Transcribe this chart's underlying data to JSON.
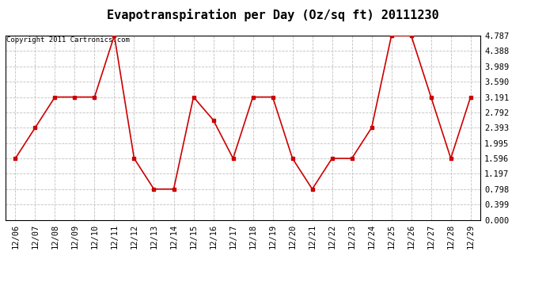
{
  "title": "Evapotranspiration per Day (Oz/sq ft) 20111230",
  "copyright": "Copyright 2011 Cartronics.com",
  "x_labels": [
    "12/06",
    "12/07",
    "12/08",
    "12/09",
    "12/10",
    "12/11",
    "12/12",
    "12/13",
    "12/14",
    "12/15",
    "12/16",
    "12/17",
    "12/18",
    "12/19",
    "12/20",
    "12/21",
    "12/22",
    "12/23",
    "12/24",
    "12/25",
    "12/26",
    "12/27",
    "12/28",
    "12/29"
  ],
  "y_values": [
    1.596,
    2.393,
    3.191,
    3.191,
    3.191,
    4.787,
    1.596,
    0.798,
    0.798,
    3.191,
    2.593,
    1.596,
    3.191,
    3.191,
    1.596,
    0.798,
    1.596,
    1.596,
    2.393,
    4.787,
    4.787,
    3.191,
    1.596,
    3.191
  ],
  "line_color": "#cc0000",
  "marker": "s",
  "marker_size": 3,
  "background_color": "#ffffff",
  "plot_bg_color": "#ffffff",
  "grid_color": "#c0c0c0",
  "y_ticks": [
    0.0,
    0.399,
    0.798,
    1.197,
    1.596,
    1.995,
    2.393,
    2.792,
    3.191,
    3.59,
    3.989,
    4.388,
    4.787
  ],
  "ylim_min": 0.0,
  "ylim_max": 4.787,
  "title_fontsize": 11,
  "tick_fontsize": 7.5,
  "copyright_fontsize": 6.5
}
